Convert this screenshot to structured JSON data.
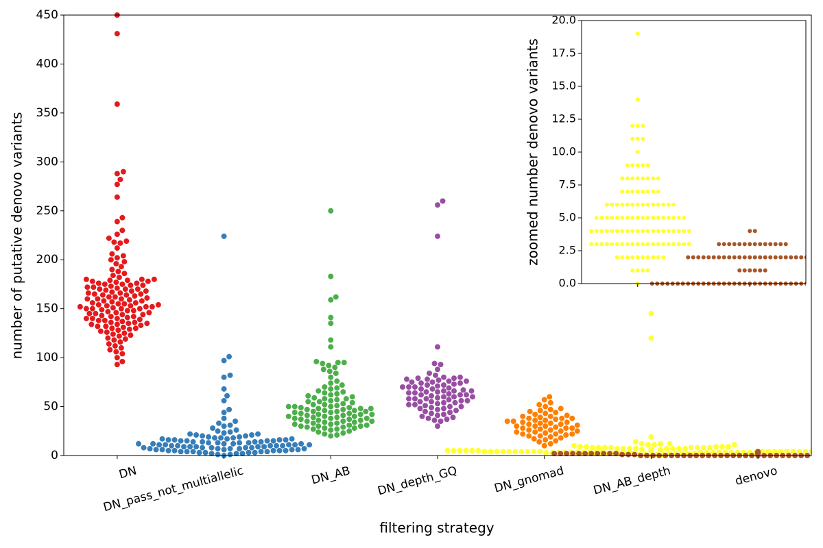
{
  "chart_data": [
    {
      "type": "swarm",
      "xlabel": "filtering strategy",
      "ylabel": "number of putative denovo variants",
      "categories": [
        "DN",
        "DN_pass_not_multiallelic",
        "DN_AB",
        "DN_depth_GQ",
        "DN_gnomad",
        "DN_AB_depth",
        "denovo"
      ],
      "colors": [
        "#e41a1c",
        "#377eb8",
        "#4daf4a",
        "#984ea3",
        "#ff7f00",
        "#ffff33",
        "#a65628"
      ],
      "ylim": [
        0,
        450
      ],
      "yticks": [
        0,
        50,
        100,
        150,
        200,
        250,
        300,
        350,
        400,
        450
      ],
      "values": [
        [
          450,
          431,
          359,
          290,
          288,
          282,
          277,
          264,
          243,
          239,
          230,
          226,
          222,
          219,
          218,
          217,
          212,
          206,
          204,
          202,
          200,
          198,
          196,
          193,
          190,
          188,
          186,
          184,
          182,
          180,
          180,
          179,
          179,
          178,
          177,
          176,
          175,
          174,
          173,
          172,
          171,
          170,
          169,
          168,
          167,
          166,
          165,
          164,
          163,
          162,
          161,
          160,
          159,
          158,
          157,
          156,
          155,
          154,
          153,
          153,
          152,
          152,
          151,
          150,
          150,
          149,
          148,
          147,
          146,
          145,
          144,
          143,
          142,
          141,
          140,
          139,
          138,
          137,
          136,
          135,
          134,
          133,
          132,
          131,
          130,
          129,
          128,
          127,
          126,
          125,
          124,
          123,
          122,
          120,
          119,
          118,
          116,
          114,
          112,
          110,
          108,
          106,
          104,
          100,
          96,
          93,
          180,
          178,
          176,
          174,
          172,
          170,
          168,
          166,
          164,
          162,
          160,
          158,
          156,
          154,
          152,
          150,
          148,
          146,
          144,
          142,
          140,
          138,
          136,
          134,
          132,
          130,
          175,
          165,
          155,
          145,
          135,
          160,
          150,
          140,
          170
        ],
        [
          224,
          101,
          97,
          82,
          80,
          68,
          61,
          56,
          47,
          44,
          38,
          35,
          33,
          31,
          30,
          28,
          26,
          25,
          24,
          23,
          22,
          22,
          21,
          21,
          20,
          20,
          19,
          19,
          18,
          18,
          18,
          17,
          17,
          17,
          16,
          16,
          16,
          16,
          15,
          15,
          15,
          15,
          14,
          14,
          14,
          14,
          13,
          13,
          13,
          13,
          12,
          12,
          12,
          12,
          12,
          11,
          11,
          11,
          11,
          11,
          10,
          10,
          10,
          10,
          10,
          9,
          9,
          9,
          9,
          9,
          8,
          8,
          8,
          8,
          8,
          7,
          7,
          7,
          7,
          7,
          6,
          6,
          6,
          6,
          6,
          5,
          5,
          5,
          5,
          5,
          4,
          4,
          4,
          4,
          4,
          3,
          3,
          3,
          3,
          2,
          2,
          2,
          1,
          1,
          0
        ],
        [
          250,
          183,
          162,
          159,
          141,
          135,
          118,
          111,
          96,
          95,
          95,
          94,
          92,
          90,
          88,
          86,
          84,
          80,
          76,
          74,
          72,
          70,
          69,
          68,
          66,
          65,
          64,
          63,
          62,
          61,
          60,
          59,
          58,
          58,
          57,
          56,
          55,
          55,
          54,
          53,
          52,
          52,
          51,
          50,
          50,
          49,
          49,
          48,
          48,
          47,
          47,
          46,
          46,
          45,
          45,
          44,
          44,
          43,
          43,
          42,
          42,
          41,
          41,
          40,
          40,
          39,
          39,
          38,
          38,
          37,
          37,
          36,
          36,
          35,
          35,
          34,
          34,
          33,
          33,
          32,
          32,
          31,
          31,
          30,
          30,
          29,
          29,
          28,
          28,
          27,
          27,
          26,
          25,
          24,
          23,
          22,
          21,
          20,
          45,
          42,
          38,
          35,
          50,
          48,
          40,
          30
        ],
        [
          260,
          256,
          224,
          111,
          94,
          93,
          88,
          84,
          82,
          80,
          80,
          79,
          79,
          78,
          78,
          77,
          76,
          76,
          75,
          74,
          74,
          73,
          72,
          72,
          71,
          70,
          70,
          69,
          68,
          68,
          67,
          66,
          66,
          65,
          64,
          64,
          63,
          62,
          62,
          61,
          60,
          60,
          59,
          58,
          58,
          57,
          56,
          56,
          55,
          54,
          54,
          53,
          52,
          52,
          51,
          50,
          50,
          49,
          48,
          48,
          47,
          46,
          45,
          44,
          43,
          42,
          41,
          40,
          39,
          38,
          37,
          36,
          35,
          30,
          65,
          60,
          55,
          70,
          75,
          62,
          58,
          66
        ],
        [
          60,
          57,
          54,
          52,
          50,
          48,
          47,
          46,
          45,
          44,
          43,
          42,
          41,
          40,
          40,
          39,
          38,
          38,
          37,
          36,
          36,
          35,
          34,
          34,
          33,
          32,
          32,
          31,
          30,
          30,
          29,
          28,
          28,
          27,
          26,
          26,
          25,
          24,
          24,
          23,
          22,
          22,
          21,
          20,
          20,
          19,
          18,
          17,
          16,
          15,
          14,
          12,
          10,
          35,
          30,
          25,
          28,
          33,
          22,
          38
        ],
        [
          145,
          120,
          19,
          14,
          12,
          12,
          12,
          11,
          11,
          11,
          10,
          9,
          9,
          9,
          9,
          9,
          8,
          8,
          8,
          8,
          8,
          8,
          8,
          8,
          7,
          7,
          7,
          7,
          7,
          7,
          7,
          7,
          6,
          6,
          6,
          6,
          6,
          6,
          6,
          6,
          6,
          6,
          6,
          6,
          6,
          6,
          5,
          5,
          5,
          5,
          5,
          5,
          5,
          5,
          5,
          5,
          5,
          5,
          5,
          5,
          5,
          5,
          5,
          5,
          4,
          4,
          4,
          4,
          4,
          4,
          4,
          4,
          4,
          4,
          4,
          4,
          4,
          4,
          4,
          4,
          4,
          4,
          4,
          4,
          3,
          3,
          3,
          3,
          3,
          3,
          3,
          3,
          3,
          3,
          3,
          3,
          3,
          3,
          3,
          3,
          3,
          3,
          3,
          3,
          2,
          2,
          2,
          2,
          2,
          2,
          2,
          2,
          2,
          2,
          1,
          1,
          1,
          1,
          0
        ],
        [
          4,
          4,
          3,
          3,
          3,
          3,
          3,
          3,
          3,
          3,
          3,
          3,
          3,
          3,
          3,
          3,
          2,
          2,
          2,
          2,
          2,
          2,
          2,
          2,
          2,
          2,
          2,
          2,
          2,
          2,
          2,
          2,
          2,
          2,
          2,
          2,
          2,
          2,
          2,
          2,
          2,
          1,
          1,
          1,
          1,
          1,
          1,
          0,
          0,
          0,
          0,
          0,
          0,
          0,
          0,
          0,
          0,
          0,
          0,
          0,
          0,
          0,
          0,
          0,
          0,
          0,
          0,
          0,
          0,
          0,
          0,
          0,
          0,
          0,
          0,
          0,
          0,
          0,
          0,
          0,
          0,
          0,
          0,
          0,
          0,
          0,
          0
        ]
      ]
    },
    {
      "type": "swarm",
      "ylabel": "zoomed number denovo variants",
      "categories": [
        null,
        null
      ],
      "colors": [
        "#ffff33",
        "#a65628"
      ],
      "ylim": [
        0,
        20
      ],
      "yticks": [
        {
          "value": 0,
          "label": "0.0"
        },
        {
          "value": 2.5,
          "label": "2.5"
        },
        {
          "value": 5,
          "label": "5.0"
        },
        {
          "value": 7.5,
          "label": "7.5"
        },
        {
          "value": 10,
          "label": "10.0"
        },
        {
          "value": 12.5,
          "label": "12.5"
        },
        {
          "value": 15,
          "label": "15.0"
        },
        {
          "value": 17.5,
          "label": "17.5"
        },
        {
          "value": 20,
          "label": "20.0"
        }
      ],
      "values": [
        [
          19,
          14,
          12,
          12,
          12,
          11,
          11,
          11,
          10,
          9,
          9,
          9,
          9,
          9,
          8,
          8,
          8,
          8,
          8,
          8,
          8,
          8,
          7,
          7,
          7,
          7,
          7,
          7,
          7,
          7,
          6,
          6,
          6,
          6,
          6,
          6,
          6,
          6,
          6,
          6,
          6,
          6,
          6,
          6,
          5,
          5,
          5,
          5,
          5,
          5,
          5,
          5,
          5,
          5,
          5,
          5,
          5,
          5,
          5,
          5,
          5,
          5,
          4,
          4,
          4,
          4,
          4,
          4,
          4,
          4,
          4,
          4,
          4,
          4,
          4,
          4,
          4,
          4,
          4,
          4,
          4,
          4,
          3,
          3,
          3,
          3,
          3,
          3,
          3,
          3,
          3,
          3,
          3,
          3,
          3,
          3,
          3,
          3,
          3,
          3,
          3,
          3,
          2,
          2,
          2,
          2,
          2,
          2,
          2,
          2,
          2,
          2,
          1,
          1,
          1,
          1,
          0
        ],
        [
          4,
          4,
          3,
          3,
          3,
          3,
          3,
          3,
          3,
          3,
          3,
          3,
          3,
          3,
          3,
          3,
          2,
          2,
          2,
          2,
          2,
          2,
          2,
          2,
          2,
          2,
          2,
          2,
          2,
          2,
          2,
          2,
          2,
          2,
          2,
          2,
          2,
          2,
          2,
          2,
          2,
          1,
          1,
          1,
          1,
          1,
          1,
          0,
          0,
          0,
          0,
          0,
          0,
          0,
          0,
          0,
          0,
          0,
          0,
          0,
          0,
          0,
          0,
          0,
          0,
          0,
          0,
          0,
          0,
          0,
          0,
          0,
          0,
          0,
          0,
          0,
          0,
          0,
          0,
          0,
          0,
          0,
          0,
          0,
          0,
          0,
          0
        ]
      ]
    }
  ]
}
